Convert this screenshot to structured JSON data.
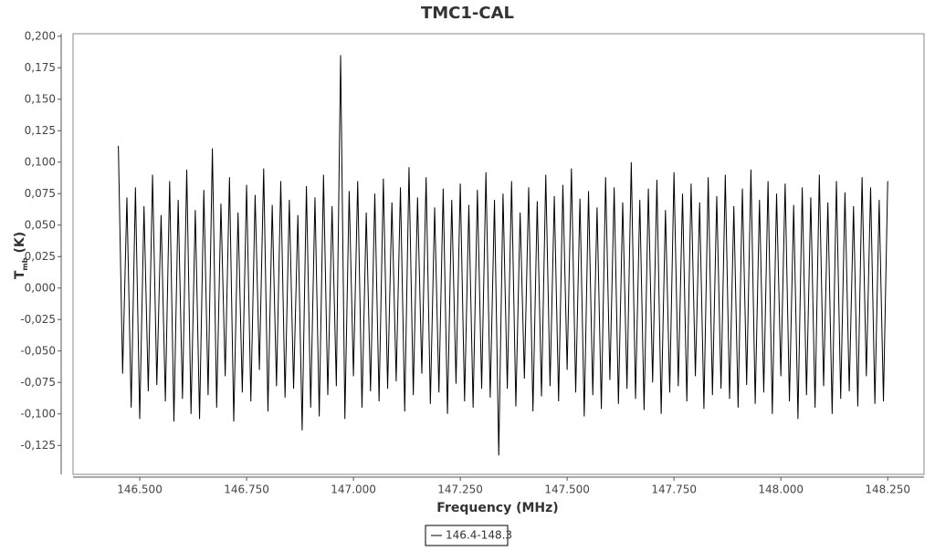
{
  "chart_data": {
    "type": "line",
    "title": "TMC1-CAL",
    "xlabel": "Frequency (MHz)",
    "ylabel": "T",
    "ylabel_subscript": "mb",
    "ylabel_unit": "(K)",
    "xlim": [
      146.344,
      148.335
    ],
    "ylim": [
      -0.148,
      0.202
    ],
    "xticks": [
      {
        "value": 146.5,
        "label": "146.500"
      },
      {
        "value": 146.75,
        "label": "146.750"
      },
      {
        "value": 147,
        "label": "147.000"
      },
      {
        "value": 147.25,
        "label": "147.250"
      },
      {
        "value": 147.5,
        "label": "147.500"
      },
      {
        "value": 147.75,
        "label": "147.750"
      },
      {
        "value": 148,
        "label": "148.000"
      },
      {
        "value": 148.25,
        "label": "148.250"
      }
    ],
    "yticks": [
      {
        "value": -0.125,
        "label": "-0,125"
      },
      {
        "value": -0.1,
        "label": "-0,100"
      },
      {
        "value": -0.075,
        "label": "-0,075"
      },
      {
        "value": -0.05,
        "label": "-0,050"
      },
      {
        "value": -0.025,
        "label": "-0,025"
      },
      {
        "value": 0,
        "label": "0,000"
      },
      {
        "value": 0.025,
        "label": "0,025"
      },
      {
        "value": 0.05,
        "label": "0,050"
      },
      {
        "value": 0.075,
        "label": "0,075"
      },
      {
        "value": 0.1,
        "label": "0,100"
      },
      {
        "value": 0.125,
        "label": "0,125"
      },
      {
        "value": 0.15,
        "label": "0,150"
      },
      {
        "value": 0.175,
        "label": "0,175"
      },
      {
        "value": 0.2,
        "label": "0,200"
      }
    ],
    "x": [
      146.45,
      146.46,
      146.47,
      146.48,
      146.49,
      146.5,
      146.51,
      146.52,
      146.53,
      146.54,
      146.55,
      146.56,
      146.57,
      146.58,
      146.59,
      146.6,
      146.61,
      146.62,
      146.63,
      146.64,
      146.65,
      146.66,
      146.67,
      146.68,
      146.69,
      146.7,
      146.71,
      146.72,
      146.73,
      146.74,
      146.75,
      146.76,
      146.77,
      146.78,
      146.79,
      146.8,
      146.81,
      146.82,
      146.83,
      146.84,
      146.85,
      146.86,
      146.87,
      146.88,
      146.89,
      146.9,
      146.91,
      146.92,
      146.93,
      146.94,
      146.95,
      146.96,
      146.97,
      146.98,
      146.99,
      147,
      147.01,
      147.02,
      147.03,
      147.04,
      147.05,
      147.06,
      147.07,
      147.08,
      147.09,
      147.1,
      147.11,
      147.12,
      147.13,
      147.14,
      147.15,
      147.16,
      147.17,
      147.18,
      147.19,
      147.2,
      147.21,
      147.22,
      147.23,
      147.24,
      147.25,
      147.26,
      147.27,
      147.28,
      147.29,
      147.3,
      147.31,
      147.32,
      147.33,
      147.34,
      147.35,
      147.36,
      147.37,
      147.38,
      147.39,
      147.4,
      147.41,
      147.42,
      147.43,
      147.44,
      147.45,
      147.46,
      147.47,
      147.48,
      147.49,
      147.5,
      147.51,
      147.52,
      147.53,
      147.54,
      147.55,
      147.56,
      147.57,
      147.58,
      147.59,
      147.6,
      147.61,
      147.62,
      147.63,
      147.64,
      147.65,
      147.66,
      147.67,
      147.68,
      147.69,
      147.7,
      147.71,
      147.72,
      147.73,
      147.74,
      147.75,
      147.76,
      147.77,
      147.78,
      147.79,
      147.8,
      147.81,
      147.82,
      147.83,
      147.84,
      147.85,
      147.86,
      147.87,
      147.88,
      147.89,
      147.9,
      147.91,
      147.92,
      147.93,
      147.94,
      147.95,
      147.96,
      147.97,
      147.98,
      147.99,
      148,
      148.01,
      148.02,
      148.03,
      148.04,
      148.05,
      148.06,
      148.07,
      148.08,
      148.09,
      148.1,
      148.11,
      148.12,
      148.13,
      148.14,
      148.15,
      148.16,
      148.17,
      148.18,
      148.19,
      148.2,
      148.21,
      148.22,
      148.23,
      148.24,
      148.25
    ],
    "series": [
      {
        "name": "146.4-148.3",
        "color": "#000000",
        "values": [
          0.113,
          -0.068,
          0.072,
          -0.095,
          0.08,
          -0.104,
          0.065,
          -0.082,
          0.09,
          -0.077,
          0.058,
          -0.09,
          0.085,
          -0.106,
          0.07,
          -0.088,
          0.094,
          -0.1,
          0.062,
          -0.104,
          0.078,
          -0.085,
          0.111,
          -0.095,
          0.067,
          -0.07,
          0.088,
          -0.106,
          0.06,
          -0.083,
          0.082,
          -0.09,
          0.074,
          -0.065,
          0.095,
          -0.098,
          0.066,
          -0.078,
          0.085,
          -0.087,
          0.07,
          -0.08,
          0.058,
          -0.113,
          0.081,
          -0.095,
          0.072,
          -0.102,
          0.09,
          -0.085,
          0.065,
          -0.078,
          0.185,
          -0.104,
          0.077,
          -0.07,
          0.085,
          -0.095,
          0.06,
          -0.082,
          0.075,
          -0.09,
          0.087,
          -0.08,
          0.068,
          -0.074,
          0.08,
          -0.098,
          0.096,
          -0.085,
          0.072,
          -0.068,
          0.088,
          -0.092,
          0.064,
          -0.083,
          0.079,
          -0.1,
          0.07,
          -0.076,
          0.083,
          -0.09,
          0.066,
          -0.095,
          0.078,
          -0.08,
          0.092,
          -0.087,
          0.07,
          -0.133,
          0.075,
          -0.08,
          0.085,
          -0.094,
          0.06,
          -0.072,
          0.08,
          -0.098,
          0.069,
          -0.086,
          0.09,
          -0.078,
          0.073,
          -0.09,
          0.082,
          -0.065,
          0.095,
          -0.083,
          0.071,
          -0.102,
          0.077,
          -0.085,
          0.064,
          -0.096,
          0.088,
          -0.073,
          0.08,
          -0.092,
          0.068,
          -0.08,
          0.1,
          -0.088,
          0.07,
          -0.097,
          0.079,
          -0.075,
          0.086,
          -0.1,
          0.062,
          -0.083,
          0.092,
          -0.078,
          0.075,
          -0.09,
          0.083,
          -0.07,
          0.068,
          -0.096,
          0.088,
          -0.085,
          0.073,
          -0.08,
          0.09,
          -0.088,
          0.065,
          -0.095,
          0.079,
          -0.077,
          0.094,
          -0.092,
          0.07,
          -0.083,
          0.085,
          -0.1,
          0.075,
          -0.07,
          0.083,
          -0.09,
          0.066,
          -0.104,
          0.08,
          -0.085,
          0.072,
          -0.095,
          0.09,
          -0.078,
          0.068,
          -0.1,
          0.085,
          -0.088,
          0.076,
          -0.082,
          0.065,
          -0.094,
          0.088,
          -0.07,
          0.08,
          -0.092,
          0.07,
          -0.09,
          0.085
        ]
      }
    ],
    "legend": "bottom"
  }
}
